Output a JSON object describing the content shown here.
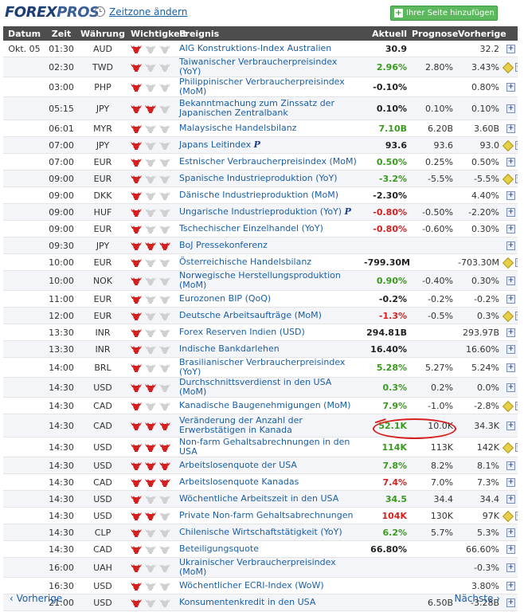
{
  "header": {
    "logo_part1": "FOREX",
    "logo_part2": "PROS",
    "timezone_link": "Zeitzone ändern",
    "add_button": "Ihrer Seite hinzufügen",
    "add_button_icon": "plus-icon"
  },
  "columns": {
    "date": "Datum",
    "time": "Zeit",
    "currency": "Währung",
    "importance": "Wichtigkeit",
    "event": "Ereignis",
    "actual": "Aktuell",
    "forecast": "Prognose",
    "previous": "Vorherige"
  },
  "colors": {
    "green": "#3a9a1d",
    "red": "#d61f1f",
    "link": "#1a5fa8",
    "header_bg": "#4d4d4d",
    "bull_active": "#d61f1f",
    "bull_inactive": "#d0d0d0"
  },
  "rows": [
    {
      "date": "Okt. 05",
      "time": "01:30",
      "cur": "AUD",
      "imp": 1,
      "event": "AIG Konstruktions-Index Australien",
      "actual": "30.9",
      "actual_color": "black",
      "forecast": "",
      "previous": "32.2",
      "info": false
    },
    {
      "date": "",
      "time": "02:30",
      "cur": "TWD",
      "imp": 1,
      "event": "Taiwanischer Verbraucherpreisindex (YoY)",
      "actual": "2.96%",
      "actual_color": "green",
      "forecast": "2.80%",
      "previous": "3.43%",
      "info": true
    },
    {
      "date": "",
      "time": "03:00",
      "cur": "PHP",
      "imp": 1,
      "event": "Philippinischer Verbraucherpreisindex (MoM)",
      "actual": "-0.10%",
      "actual_color": "black",
      "forecast": "",
      "previous": "0.80%",
      "info": false
    },
    {
      "date": "",
      "time": "05:15",
      "cur": "JPY",
      "imp": 2,
      "event": "Bekanntmachung zum Zinssatz der Japanischen Zentralbank",
      "actual": "0.10%",
      "actual_color": "black",
      "forecast": "0.10%",
      "previous": "0.10%",
      "info": false,
      "tall": true
    },
    {
      "date": "",
      "time": "06:01",
      "cur": "MYR",
      "imp": 1,
      "event": "Malaysische Handelsbilanz",
      "actual": "7.10B",
      "actual_color": "green",
      "forecast": "6.20B",
      "previous": "3.60B",
      "info": false
    },
    {
      "date": "",
      "time": "07:00",
      "cur": "JPY",
      "imp": 1,
      "event": "Japans Leitindex",
      "badge": "P",
      "actual": "93.6",
      "actual_color": "black",
      "forecast": "93.6",
      "previous": "93.0",
      "info": true
    },
    {
      "date": "",
      "time": "07:00",
      "cur": "EUR",
      "imp": 1,
      "event": "Estnischer Verbraucherpreisindex (MoM)",
      "actual": "0.50%",
      "actual_color": "green",
      "forecast": "0.25%",
      "previous": "0.50%",
      "info": false
    },
    {
      "date": "",
      "time": "09:00",
      "cur": "EUR",
      "imp": 1,
      "event": "Spanische Industrieproduktion (YoY)",
      "actual": "-3.2%",
      "actual_color": "green",
      "forecast": "-5.5%",
      "previous": "-5.5%",
      "info": true
    },
    {
      "date": "",
      "time": "09:00",
      "cur": "DKK",
      "imp": 1,
      "event": "Dänische Industrieproduktion (MoM)",
      "actual": "-2.30%",
      "actual_color": "black",
      "forecast": "",
      "previous": "4.40%",
      "info": false
    },
    {
      "date": "",
      "time": "09:00",
      "cur": "HUF",
      "imp": 1,
      "event": "Ungarische Industrieproduktion (YoY)",
      "badge": "P",
      "actual": "-0.80%",
      "actual_color": "red",
      "forecast": "-0.50%",
      "previous": "-2.20%",
      "info": false
    },
    {
      "date": "",
      "time": "09:00",
      "cur": "EUR",
      "imp": 1,
      "event": "Tschechischer Einzelhandel (YoY)",
      "actual": "-0.80%",
      "actual_color": "red",
      "forecast": "-0.60%",
      "previous": "0.30%",
      "info": false
    },
    {
      "date": "",
      "time": "09:30",
      "cur": "JPY",
      "imp": 3,
      "event": "BoJ Pressekonferenz",
      "actual": "",
      "actual_color": "black",
      "forecast": "",
      "previous": "",
      "info": false
    },
    {
      "date": "",
      "time": "10:00",
      "cur": "EUR",
      "imp": 1,
      "event": "Österreichische Handelsbilanz",
      "actual": "-799.30M",
      "actual_color": "black",
      "forecast": "",
      "previous": "-703.30M",
      "info": true
    },
    {
      "date": "",
      "time": "10:00",
      "cur": "NOK",
      "imp": 1,
      "event": "Norwegische Herstellungsproduktion (MoM)",
      "actual": "0.90%",
      "actual_color": "green",
      "forecast": "-0.40%",
      "previous": "0.30%",
      "info": false
    },
    {
      "date": "",
      "time": "11:00",
      "cur": "EUR",
      "imp": 1,
      "event": "Eurozonen BIP (QoQ)",
      "actual": "-0.2%",
      "actual_color": "black",
      "forecast": "-0.2%",
      "previous": "-0.2%",
      "info": false
    },
    {
      "date": "",
      "time": "12:00",
      "cur": "EUR",
      "imp": 1,
      "event": "Deutsche Arbeitsaufträge (MoM)",
      "actual": "-1.3%",
      "actual_color": "red",
      "forecast": "-0.5%",
      "previous": "0.3%",
      "info": true
    },
    {
      "date": "",
      "time": "13:30",
      "cur": "INR",
      "imp": 1,
      "event": "Forex Reserven Indien (USD)",
      "actual": "294.81B",
      "actual_color": "black",
      "forecast": "",
      "previous": "293.97B",
      "info": false
    },
    {
      "date": "",
      "time": "13:30",
      "cur": "INR",
      "imp": 1,
      "event": "Indische Bankdarlehen",
      "actual": "16.40%",
      "actual_color": "black",
      "forecast": "",
      "previous": "16.60%",
      "info": false
    },
    {
      "date": "",
      "time": "14:00",
      "cur": "BRL",
      "imp": 1,
      "event": "Brasilianischer Verbraucherpreisindex (YoY)",
      "actual": "5.28%",
      "actual_color": "green",
      "forecast": "5.27%",
      "previous": "5.24%",
      "info": false
    },
    {
      "date": "",
      "time": "14:30",
      "cur": "USD",
      "imp": 2,
      "event": "Durchschnittsverdienst in den USA (MoM)",
      "actual": "0.3%",
      "actual_color": "green",
      "forecast": "0.2%",
      "previous": "0.0%",
      "info": false
    },
    {
      "date": "",
      "time": "14:30",
      "cur": "CAD",
      "imp": 1,
      "event": "Kanadische Baugenehmigungen (MoM)",
      "actual": "7.9%",
      "actual_color": "green",
      "forecast": "-1.0%",
      "previous": "-2.8%",
      "info": true
    },
    {
      "date": "",
      "time": "14:30",
      "cur": "CAD",
      "imp": 3,
      "event": "Veränderung der Anzahl der Erwerbstätigen in Kanada",
      "actual": "52.1K",
      "actual_color": "green",
      "forecast": "10.0K",
      "previous": "34.3K",
      "info": false,
      "tall": true
    },
    {
      "date": "",
      "time": "14:30",
      "cur": "USD",
      "imp": 3,
      "event": "Non-farm Gehaltsabrechnungen in den USA",
      "actual": "114K",
      "actual_color": "green",
      "forecast": "113K",
      "previous": "142K",
      "info": true
    },
    {
      "date": "",
      "time": "14:30",
      "cur": "USD",
      "imp": 3,
      "event": "Arbeitslosenquote der USA",
      "actual": "7.8%",
      "actual_color": "green",
      "forecast": "8.2%",
      "previous": "8.1%",
      "info": false
    },
    {
      "date": "",
      "time": "14:30",
      "cur": "CAD",
      "imp": 3,
      "event": "Arbeitslosenquote Kanadas",
      "actual": "7.4%",
      "actual_color": "red",
      "forecast": "7.0%",
      "previous": "7.3%",
      "info": false
    },
    {
      "date": "",
      "time": "14:30",
      "cur": "USD",
      "imp": 1,
      "event": "Wöchentliche Arbeitszeit in den USA",
      "actual": "34.5",
      "actual_color": "green",
      "forecast": "34.4",
      "previous": "34.4",
      "info": false
    },
    {
      "date": "",
      "time": "14:30",
      "cur": "USD",
      "imp": 2,
      "event": "Private Non-farm Gehaltsabrechnungen",
      "actual": "104K",
      "actual_color": "red",
      "forecast": "130K",
      "previous": "97K",
      "info": true
    },
    {
      "date": "",
      "time": "14:30",
      "cur": "CLP",
      "imp": 1,
      "event": "Chilenische Wirtschaftstätigkeit (YoY)",
      "actual": "6.2%",
      "actual_color": "green",
      "forecast": "5.7%",
      "previous": "5.3%",
      "info": false
    },
    {
      "date": "",
      "time": "14:30",
      "cur": "CAD",
      "imp": 1,
      "event": "Beteiligungsquote",
      "actual": "66.80%",
      "actual_color": "black",
      "forecast": "",
      "previous": "66.60%",
      "info": false
    },
    {
      "date": "",
      "time": "16:00",
      "cur": "UAH",
      "imp": 1,
      "event": "Ukrainischer Verbraucherpreisindex (MoM)",
      "actual": "",
      "actual_color": "black",
      "forecast": "",
      "previous": "-0.3%",
      "info": false
    },
    {
      "date": "",
      "time": "16:30",
      "cur": "USD",
      "imp": 1,
      "event": "Wöchentlicher ECRI-Index (WoW)",
      "actual": "",
      "actual_color": "black",
      "forecast": "",
      "previous": "3.80%",
      "info": false
    },
    {
      "date": "",
      "time": "21:00",
      "cur": "USD",
      "imp": 1,
      "event": "Konsumentenkredit in den USA",
      "actual": "",
      "actual_color": "black",
      "forecast": "6.50B",
      "previous": "-3.28B",
      "info": false
    }
  ],
  "footer": {
    "prev": "Vorherige",
    "next": "Nächste"
  }
}
